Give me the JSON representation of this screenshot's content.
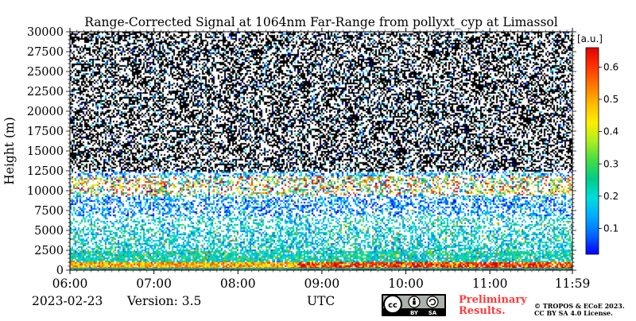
{
  "chart_data": {
    "type": "heatmap",
    "title": "Range-Corrected Signal at 1064nm Far-Range from pollyxt_cyp at Limassol",
    "xlabel": "UTC",
    "ylabel": "Height (m)",
    "x_ticks": [
      "06:00",
      "07:00",
      "08:00",
      "09:00",
      "10:00",
      "11:00",
      "11:59"
    ],
    "x_range_hours": [
      6.0,
      11.983
    ],
    "y_ticks": [
      0,
      2500,
      5000,
      7500,
      10000,
      12500,
      15000,
      17500,
      20000,
      22500,
      25000,
      27500,
      30000
    ],
    "ylim": [
      0,
      30000
    ],
    "colorbar": {
      "unit": "[a.u.]",
      "ticks": [
        0.1,
        0.2,
        0.3,
        0.4,
        0.5,
        0.6
      ],
      "range": [
        0.02,
        0.66
      ],
      "colors": [
        "#0000ff",
        "#0066ff",
        "#00aaff",
        "#00dddd",
        "#00cc88",
        "#44dd44",
        "#aaee22",
        "#ffee00",
        "#ffbb00",
        "#ff7700",
        "#ff3300",
        "#e00000"
      ]
    },
    "layers": [
      {
        "range_m": [
          0,
          400
        ],
        "level": 0.55
      },
      {
        "range_m": [
          400,
          1200
        ],
        "level": 0.42
      },
      {
        "range_m": [
          1200,
          2500
        ],
        "level": 0.22
      },
      {
        "range_m": [
          2500,
          7000
        ],
        "level": 0.2
      },
      {
        "range_m": [
          9500,
          12000
        ],
        "level": 0.55
      }
    ],
    "grid": false
  },
  "footer": {
    "date": "2023-02-23",
    "version": "Version: 3.5",
    "time_label": "UTC",
    "preliminary_line1": "Preliminary",
    "preliminary_line2": "Results.",
    "copyright_line1": "© TROPOS & ECoE 2023.",
    "copyright_line2": "CC BY SA 4.0 License.",
    "license_badge": {
      "icon": "cc-by-sa-badge",
      "label_by": "BY",
      "label_sa": "SA"
    }
  }
}
